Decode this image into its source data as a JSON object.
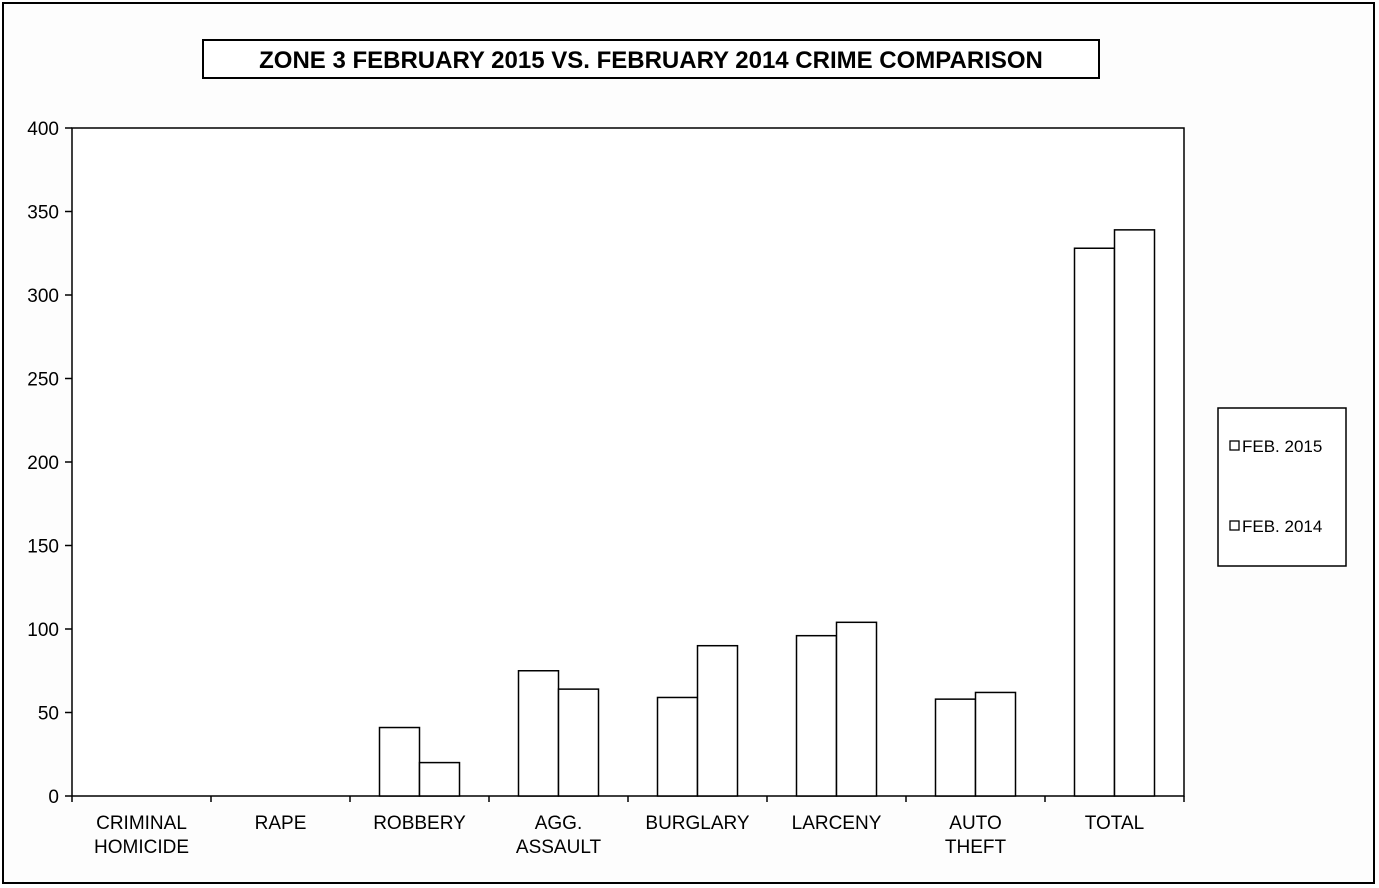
{
  "chart_data": {
    "type": "bar",
    "title": "ZONE 3  FEBRUARY 2015 VS. FEBRUARY 2014 CRIME COMPARISON",
    "xlabel": "",
    "ylabel": "",
    "ylim": [
      0,
      400
    ],
    "yticks": [
      0,
      50,
      100,
      150,
      200,
      250,
      300,
      350,
      400
    ],
    "grid": false,
    "legend_position": "right",
    "categories": [
      [
        "CRIMINAL",
        "HOMICIDE"
      ],
      [
        "RAPE"
      ],
      [
        "ROBBERY"
      ],
      [
        "AGG.",
        "ASSAULT"
      ],
      [
        "BURGLARY"
      ],
      [
        "LARCENY"
      ],
      [
        "AUTO",
        "THEFT"
      ],
      [
        "TOTAL"
      ]
    ],
    "series": [
      {
        "name": "FEB. 2015",
        "values": [
          0,
          0,
          41,
          75,
          59,
          96,
          58,
          328
        ],
        "color": "#ffffff"
      },
      {
        "name": "FEB. 2014",
        "values": [
          0,
          0,
          20,
          64,
          90,
          104,
          62,
          339
        ],
        "color": "#ffffff"
      }
    ]
  }
}
